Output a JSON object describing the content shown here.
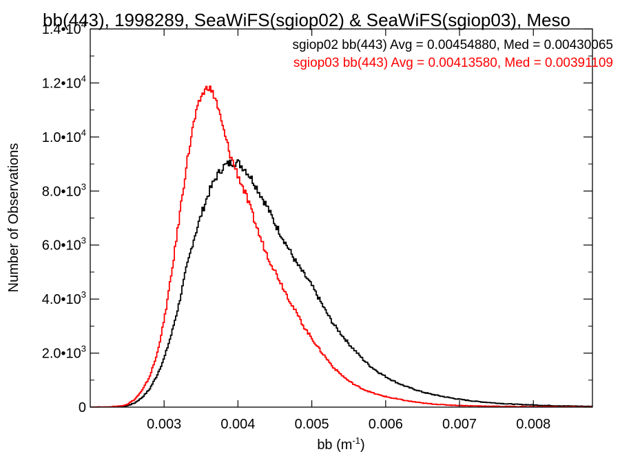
{
  "chart_data": {
    "type": "line",
    "title": "bb(443), 1998289, SeaWiFS(sgiop02) & SeaWiFS(sgiop03), Meso",
    "xlabel": "bb (m",
    "xlabel_sup": "-1",
    "xlabel_suffix": ")",
    "ylabel": "Number of Observations",
    "xlim": [
      0.002,
      0.0088
    ],
    "ylim": [
      0,
      14000
    ],
    "x_ticks": [
      {
        "value": 0.003,
        "label": "0.003"
      },
      {
        "value": 0.004,
        "label": "0.004"
      },
      {
        "value": 0.005,
        "label": "0.005"
      },
      {
        "value": 0.006,
        "label": "0.006"
      },
      {
        "value": 0.007,
        "label": "0.007"
      },
      {
        "value": 0.008,
        "label": "0.008"
      }
    ],
    "y_ticks": [
      {
        "value": 0,
        "mant": "0",
        "exp": ""
      },
      {
        "value": 2000,
        "mant": "2.0•10",
        "exp": "3"
      },
      {
        "value": 4000,
        "mant": "4.0•10",
        "exp": "3"
      },
      {
        "value": 6000,
        "mant": "6.0•10",
        "exp": "3"
      },
      {
        "value": 8000,
        "mant": "8.0•10",
        "exp": "3"
      },
      {
        "value": 10000,
        "mant": "1.0•10",
        "exp": "4"
      },
      {
        "value": 12000,
        "mant": "1.2•10",
        "exp": "4"
      },
      {
        "value": 14000,
        "mant": "1.4•10",
        "exp": "4"
      }
    ],
    "grid": false,
    "legend_position": "top-right",
    "series": [
      {
        "name": "sgiop02 bb(443) Avg = 0.00454880, Med = 0.00430065",
        "color": "#000000",
        "x": [
          0.002,
          0.0022,
          0.0024,
          0.0025,
          0.0026,
          0.0027,
          0.0028,
          0.0029,
          0.003,
          0.0031,
          0.0032,
          0.0033,
          0.0034,
          0.0035,
          0.0036,
          0.0037,
          0.0038,
          0.0039,
          0.004,
          0.0041,
          0.0042,
          0.0043,
          0.0044,
          0.0045,
          0.0046,
          0.0047,
          0.0048,
          0.0049,
          0.005,
          0.0051,
          0.0052,
          0.0053,
          0.0054,
          0.0055,
          0.0056,
          0.0057,
          0.0058,
          0.0059,
          0.006,
          0.0061,
          0.0062,
          0.0063,
          0.0064,
          0.0065,
          0.0066,
          0.0068,
          0.007,
          0.0072,
          0.0074,
          0.0076,
          0.0078,
          0.008,
          0.0082,
          0.0084,
          0.0086,
          0.0088
        ],
        "y": [
          0,
          0,
          20,
          50,
          150,
          350,
          650,
          1150,
          1800,
          2700,
          3800,
          5100,
          6200,
          7100,
          7900,
          8500,
          8900,
          9050,
          9050,
          8800,
          8400,
          7900,
          7400,
          6800,
          6300,
          5800,
          5300,
          4900,
          4500,
          4000,
          3500,
          3050,
          2700,
          2350,
          2050,
          1750,
          1500,
          1300,
          1130,
          980,
          850,
          740,
          650,
          560,
          490,
          380,
          290,
          220,
          170,
          130,
          100,
          80,
          60,
          45,
          35,
          25
        ]
      },
      {
        "name": "sgiop03 bb(443) Avg = 0.00413580, Med = 0.00391109",
        "color": "#ff0000",
        "x": [
          0.002,
          0.0022,
          0.0024,
          0.0025,
          0.0026,
          0.0027,
          0.0028,
          0.0029,
          0.003,
          0.0031,
          0.0032,
          0.0033,
          0.0034,
          0.0035,
          0.0036,
          0.0037,
          0.0038,
          0.0039,
          0.004,
          0.0041,
          0.0042,
          0.0043,
          0.0044,
          0.0045,
          0.0046,
          0.0047,
          0.0048,
          0.0049,
          0.005,
          0.0051,
          0.0052,
          0.0053,
          0.0054,
          0.0055,
          0.0056,
          0.0057,
          0.0058,
          0.0059,
          0.006,
          0.0061,
          0.0062,
          0.0063,
          0.0064,
          0.0065,
          0.0066,
          0.0068,
          0.007,
          0.0072,
          0.0074,
          0.0076,
          0.0078,
          0.008,
          0.0082,
          0.0084,
          0.0086,
          0.0088
        ],
        "y": [
          0,
          0,
          40,
          100,
          280,
          600,
          1100,
          1900,
          3200,
          4900,
          6900,
          8900,
          10500,
          11500,
          11900,
          11400,
          10300,
          9300,
          8600,
          7900,
          7100,
          6300,
          5600,
          5050,
          4500,
          3950,
          3450,
          2950,
          2550,
          2150,
          1800,
          1450,
          1200,
          970,
          800,
          660,
          550,
          460,
          390,
          330,
          280,
          230,
          190,
          150,
          125,
          85,
          60,
          45,
          35,
          25,
          20,
          15,
          12,
          10,
          8,
          5
        ]
      }
    ]
  }
}
